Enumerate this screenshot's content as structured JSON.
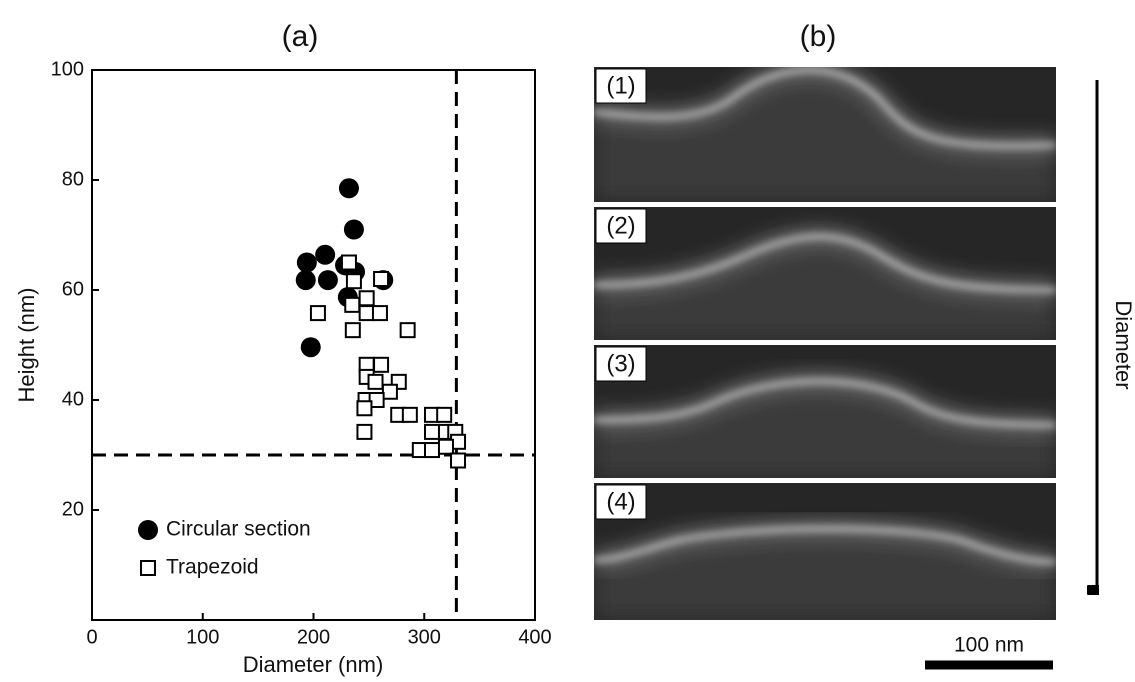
{
  "chart_data": {
    "type": "scatter",
    "title": "(a)",
    "x_label": "Diameter (nm)",
    "y_label": "Height (nm)",
    "xlim": [
      0,
      400
    ],
    "ylim": [
      0,
      100
    ],
    "xticks": [
      0,
      100,
      200,
      300,
      400
    ],
    "yticks": [
      20,
      40,
      60,
      80,
      100
    ],
    "vline": 329,
    "hline": 30,
    "legend": "lower left",
    "series": [
      {
        "name": "Circular section",
        "color": "#000000",
        "marker": "circle",
        "x": [
          232,
          236.5,
          194,
          210.5,
          193,
          213,
          228.5,
          237.5,
          231,
          263,
          197.5
        ],
        "values": [
          78.5,
          71,
          65,
          66.4,
          61.8,
          61.8,
          64.5,
          63.3,
          58.7,
          61.8,
          49.6
        ]
      },
      {
        "name": "Trapezoid",
        "color": "#ffffff",
        "marker": "square",
        "x": [
          232,
          261,
          236.5,
          204,
          235,
          248,
          248,
          260,
          235.5,
          285,
          248,
          261,
          248,
          256,
          277,
          269,
          247,
          257,
          246,
          276.5,
          287,
          246,
          307,
          318,
          307,
          296,
          307,
          319.6,
          328,
          330.5,
          319.6,
          330.5
        ],
        "values": [
          65,
          62,
          61.6,
          55.8,
          57.3,
          58.5,
          55.8,
          55.8,
          52.7,
          52.7,
          46.4,
          46.4,
          44.2,
          43.3,
          43.3,
          41.5,
          40,
          40,
          38.5,
          37.3,
          37.3,
          34.2,
          37.3,
          37.3,
          34.2,
          30.9,
          30.9,
          34.2,
          34.2,
          32.4,
          31.5,
          29
        ]
      }
    ]
  },
  "panel_b": {
    "title": "(b)",
    "images": [
      {
        "label": "(1)"
      },
      {
        "label": "(2)"
      },
      {
        "label": "(3)"
      },
      {
        "label": "(4)"
      }
    ],
    "arrow_label": "Diameter",
    "scale_bar": "100 nm"
  }
}
